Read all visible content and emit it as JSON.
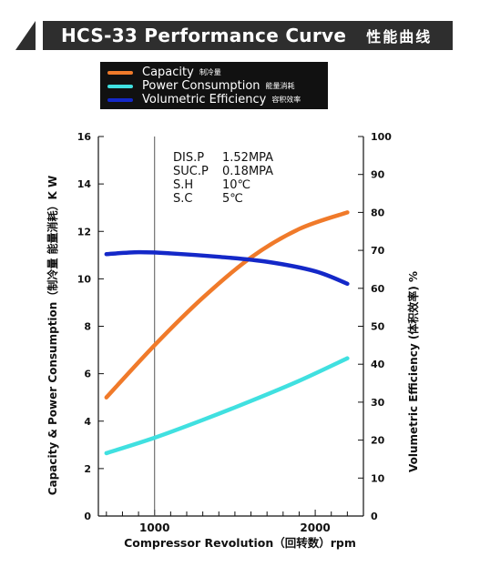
{
  "header": {
    "title": "HCS-33 Performance Curve",
    "title_cn": "性能曲线"
  },
  "colors": {
    "capacity": "#f07a2a",
    "power": "#40e0e0",
    "efficiency": "#1428c8",
    "banner": "#2e2e2e"
  },
  "chart_data": {
    "type": "line",
    "xlabel": "Compressor Revolution（回转数）rpm",
    "ylabel_left": "Capacity & Power Consumption（制冷量 能量消耗）K W",
    "ylabel_right": "Volumetric Efficiency (体积效率) %",
    "xlim": [
      650,
      2300
    ],
    "ylim_left": [
      0,
      16
    ],
    "ylim_right": [
      0,
      100
    ],
    "x_ticks": [
      1000,
      2000
    ],
    "y_ticks_left": [
      0,
      2,
      4,
      6,
      8,
      10,
      12,
      14,
      16
    ],
    "y_ticks_right": [
      0,
      10,
      20,
      30,
      40,
      50,
      60,
      70,
      80,
      90,
      100
    ],
    "reference_line_x": 1000,
    "legend_placement": "top",
    "series": [
      {
        "name": "Capacity",
        "name_cn": "制冷量",
        "axis": "left",
        "x": [
          700,
          1000,
          1300,
          1600,
          1900,
          2200
        ],
        "y": [
          5.0,
          7.2,
          9.2,
          10.9,
          12.1,
          12.8
        ]
      },
      {
        "name": "Power Consumption",
        "name_cn": "能量消耗",
        "axis": "left",
        "x": [
          700,
          1000,
          1300,
          1600,
          1900,
          2200
        ],
        "y": [
          2.65,
          3.3,
          4.05,
          4.85,
          5.7,
          6.65
        ]
      },
      {
        "name": "Volumetric Efficiency",
        "name_cn": "容积效率",
        "axis": "right",
        "x": [
          700,
          900,
          1100,
          1400,
          1700,
          2000,
          2200
        ],
        "y": [
          69,
          69.5,
          69.2,
          68.3,
          67,
          64.5,
          61.2
        ]
      }
    ],
    "annotation": {
      "rows": [
        {
          "label": "DIS.P",
          "value": "1.52MPA"
        },
        {
          "label": "SUC.P",
          "value": "0.18MPA"
        },
        {
          "label": "S.H",
          "value": "10℃"
        },
        {
          "label": "S.C",
          "value": "5℃"
        }
      ]
    }
  }
}
